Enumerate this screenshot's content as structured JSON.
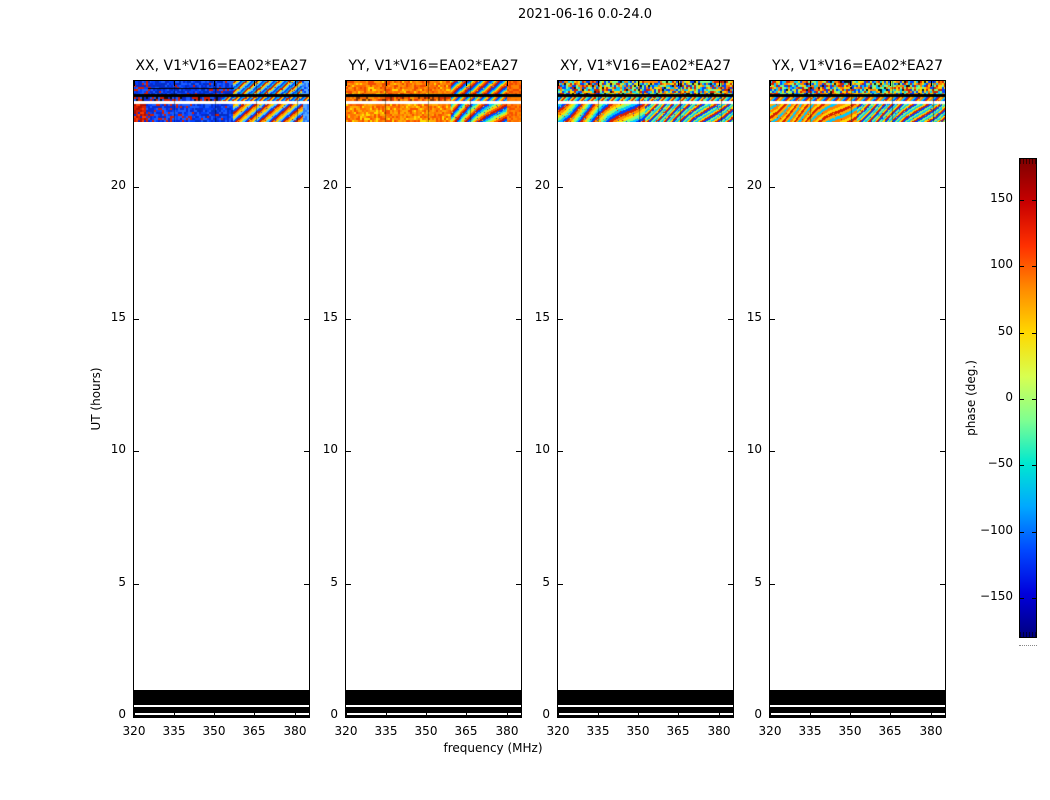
{
  "chart_data": {
    "type": "heatmap",
    "title": "2021-06-16 0.0-24.0",
    "xlabel": "frequency (MHz)",
    "ylabel": "UT (hours)",
    "x_ticks": [
      320,
      335,
      350,
      365,
      380
    ],
    "x_range_mhz": [
      320,
      385
    ],
    "y_ticks": [
      0,
      5,
      10,
      15,
      20
    ],
    "y_range_hours": [
      0,
      24
    ],
    "colorbar": {
      "label": "phase (deg.)",
      "ticks": [
        150,
        100,
        50,
        0,
        -50,
        -100,
        -150
      ],
      "tick_labels": [
        "150",
        "100",
        "50",
        "0",
        "−50",
        "−100",
        "−150"
      ],
      "range_deg": [
        -180,
        180
      ],
      "colormap": "jet",
      "gradient_top_to_bottom": [
        "#7f0000",
        "#c80000",
        "#ff3000",
        "#ff8c00",
        "#ffd800",
        "#d8ff50",
        "#80ff90",
        "#00e8d0",
        "#00a8ff",
        "#0048ff",
        "#0000dc",
        "#00007f"
      ]
    },
    "band_strip_layout": [
      {
        "type": "strip",
        "key": "A",
        "h": 13
      },
      {
        "type": "divider",
        "color": "#000000",
        "h": 3
      },
      {
        "type": "strip",
        "key": "B",
        "h": 4
      },
      {
        "type": "divider",
        "color": "#ffffff",
        "h": 3
      },
      {
        "type": "strip",
        "key": "C",
        "h": 18
      }
    ],
    "top_band_hours": [
      22.5,
      24.0
    ],
    "flagged_band_hours": [
      0.0,
      1.0
    ],
    "flagged_band_rows": [
      {
        "h": 15,
        "color": "#000000"
      },
      {
        "h": 2,
        "color": "#ffffff"
      },
      {
        "h": 6,
        "color": "#000000"
      },
      {
        "h": 1.5,
        "color": "#ffffff"
      },
      {
        "h": 2.5,
        "color": "#000000"
      }
    ],
    "panels": [
      {
        "id": "XX",
        "title": "XX, V1*V16=EA02*EA27",
        "band": {
          "vlines": [
            0.23,
            0.46,
            0.7,
            0.93
          ],
          "hstreaks": [
            {
              "y": 7,
              "f": [
                0.08,
                0.57
              ]
            }
          ],
          "strips": {
            "A": [
              {
                "f": [
                  0,
                  0.1
                ],
                "style": "speckle",
                "colors": [
                  "#0a2ad0",
                  "#0040ff",
                  "#1b5cff"
                ],
                "accent": [
                  "#d81e00"
                ],
                "accent_p": 0.22
              },
              {
                "f": [
                  0.1,
                  0.57
                ],
                "style": "speckle",
                "colors": [
                  "#0a2ad0",
                  "#0040ff",
                  "#1b5cff",
                  "#0030c0"
                ],
                "accent": [
                  "#d81e00"
                ],
                "accent_p": 0.07
              },
              {
                "f": [
                  0.57,
                  0.96
                ],
                "style": "fringes",
                "period": 2.2,
                "colors": [
                  "#c81800",
                  "#ffd800",
                  "#50c8ff",
                  "#0040ff",
                  "#00a8e8"
                ]
              },
              {
                "f": [
                  0.96,
                  1
                ],
                "style": "speckle",
                "colors": [
                  "#2e7bff",
                  "#55aaff",
                  "#0040ff"
                ]
              }
            ],
            "B": [
              {
                "f": [
                  0,
                  0.5
                ],
                "style": "speckle",
                "colors": [
                  "#0a2ad0",
                  "#d81e00",
                  "#1b5cff",
                  "#101010"
                ]
              },
              {
                "f": [
                  0.5,
                  1
                ],
                "style": "fringes",
                "period": 2.2,
                "colors": [
                  "#0040ff",
                  "#00b4ff",
                  "#d81e00",
                  "#ffd800"
                ]
              }
            ],
            "C": [
              {
                "f": [
                  0,
                  0.07
                ],
                "style": "speckle",
                "colors": [
                  "#d81e00",
                  "#ff3c00",
                  "#b01000"
                ],
                "accent": [
                  "#0a2ad0"
                ],
                "accent_p": 0.18
              },
              {
                "f": [
                  0.07,
                  0.35
                ],
                "style": "speckle",
                "colors": [
                  "#0a2ad0",
                  "#0040ff",
                  "#1b5cff"
                ],
                "accent": [
                  "#d81e00"
                ],
                "accent_p": 0.16
              },
              {
                "f": [
                  0.35,
                  0.57
                ],
                "style": "speckle",
                "colors": [
                  "#0a2ad0",
                  "#0040ff",
                  "#1b5cff",
                  "#0030c0"
                ],
                "accent": [
                  "#d81e00"
                ],
                "accent_p": 0.04
              },
              {
                "f": [
                  0.57,
                  0.97
                ],
                "style": "fringes",
                "period": 2.4,
                "colors": [
                  "#c81800",
                  "#ff9000",
                  "#ffd800",
                  "#50c8ff",
                  "#0040ff"
                ]
              },
              {
                "f": [
                  0.97,
                  1
                ],
                "style": "speckle",
                "colors": [
                  "#2e7bff",
                  "#55aaff"
                ]
              }
            ]
          }
        }
      },
      {
        "id": "YY",
        "title": "YY, V1*V16=EA02*EA27",
        "band": {
          "vlines": [
            0.22,
            0.47,
            0.71
          ],
          "hstreaks": [],
          "strips": {
            "A": [
              {
                "f": [
                  0,
                  0.6
                ],
                "style": "speckle",
                "colors": [
                  "#ff6a00",
                  "#ff8200",
                  "#f04800",
                  "#ff9a00"
                ],
                "accent": [
                  "#ffd800"
                ],
                "accent_p": 0.08
              },
              {
                "f": [
                  0.6,
                  0.92
                ],
                "style": "fringes",
                "period": 2.2,
                "colors": [
                  "#0040ff",
                  "#00c8ff",
                  "#ffd800",
                  "#ff5a00",
                  "#c81800"
                ]
              },
              {
                "f": [
                  0.92,
                  1
                ],
                "style": "speckle",
                "colors": [
                  "#ff6a00",
                  "#ff8200",
                  "#f04800"
                ]
              }
            ],
            "B": [
              {
                "f": [
                  0,
                  0.6
                ],
                "style": "speckle",
                "colors": [
                  "#ff6a00",
                  "#e83800",
                  "#ff9a00",
                  "#803000"
                ]
              },
              {
                "f": [
                  0.6,
                  0.92
                ],
                "style": "fringes",
                "period": 2.0,
                "colors": [
                  "#0040ff",
                  "#00c8ff",
                  "#ffd800",
                  "#ff5a00"
                ]
              },
              {
                "f": [
                  0.92,
                  1
                ],
                "style": "speckle",
                "colors": [
                  "#ff6a00",
                  "#ff8200"
                ]
              }
            ],
            "C": [
              {
                "f": [
                  0,
                  0.6
                ],
                "style": "speckle",
                "colors": [
                  "#ff7000",
                  "#ff8c00",
                  "#f85000",
                  "#ffaa00"
                ],
                "accent": [
                  "#ffe000"
                ],
                "accent_p": 0.12
              },
              {
                "f": [
                  0.6,
                  0.92
                ],
                "style": "fringes-curved",
                "period": 2.4,
                "colors": [
                  "#0040ff",
                  "#00c8ff",
                  "#80ff80",
                  "#ffd800",
                  "#ff5a00",
                  "#c81800"
                ]
              },
              {
                "f": [
                  0.92,
                  1
                ],
                "style": "speckle",
                "colors": [
                  "#ff7000",
                  "#ff8c00",
                  "#f85000"
                ]
              }
            ]
          }
        }
      },
      {
        "id": "XY",
        "title": "XY, V1*V16=EA02*EA27",
        "band": {
          "vlines": [
            0.23,
            0.46,
            0.7,
            0.93
          ],
          "hstreaks": [],
          "strips": {
            "A": [
              {
                "f": [
                  0,
                  1
                ],
                "style": "speckle",
                "colors": [
                  "#0040ff",
                  "#00c8ff",
                  "#ffd800",
                  "#d81e00",
                  "#80ff80",
                  "#ff8000"
                ],
                "accent": [
                  "#101010"
                ],
                "accent_p": 0.05
              }
            ],
            "B": [
              {
                "f": [
                  0,
                  1
                ],
                "style": "fringes",
                "period": 2.0,
                "colors": [
                  "#00c8ff",
                  "#0040ff",
                  "#ffd800",
                  "#d81e00",
                  "#80ff80"
                ]
              }
            ],
            "C": [
              {
                "f": [
                  0,
                  0.5
                ],
                "style": "fringes-curved",
                "period": 3.2,
                "colors": [
                  "#d81e00",
                  "#ff9000",
                  "#ffe000",
                  "#80ff80",
                  "#00c8ff",
                  "#0040ff"
                ]
              },
              {
                "f": [
                  0.5,
                  1
                ],
                "style": "fringes-curved",
                "period": 2.0,
                "colors": [
                  "#00c8ff",
                  "#ffd800",
                  "#d81e00",
                  "#0040ff",
                  "#80ff80"
                ]
              }
            ]
          }
        }
      },
      {
        "id": "YX",
        "title": "YX, V1*V16=EA02*EA27",
        "band": {
          "vlines": [
            0.23,
            0.46,
            0.7,
            0.93
          ],
          "hstreaks": [],
          "strips": {
            "A": [
              {
                "f": [
                  0,
                  1
                ],
                "style": "speckle",
                "colors": [
                  "#0040ff",
                  "#00c8ff",
                  "#ffd800",
                  "#d81e00",
                  "#80ff80",
                  "#ff8000"
                ],
                "accent": [
                  "#101010"
                ],
                "accent_p": 0.05
              }
            ],
            "B": [
              {
                "f": [
                  0,
                  1
                ],
                "style": "fringes",
                "period": 2.0,
                "colors": [
                  "#ffd800",
                  "#ff8000",
                  "#00c8ff",
                  "#0040ff",
                  "#d81e00"
                ]
              }
            ],
            "C": [
              {
                "f": [
                  0,
                  0.5
                ],
                "style": "fringes-curved",
                "period": 3.4,
                "colors": [
                  "#ff8000",
                  "#ffd800",
                  "#d81e00",
                  "#ffaa00",
                  "#00c8ff"
                ]
              },
              {
                "f": [
                  0.5,
                  1
                ],
                "style": "fringes-curved",
                "period": 2.0,
                "colors": [
                  "#00c8ff",
                  "#ffd800",
                  "#d81e00",
                  "#0040ff",
                  "#80ff80"
                ]
              }
            ]
          }
        }
      }
    ]
  }
}
